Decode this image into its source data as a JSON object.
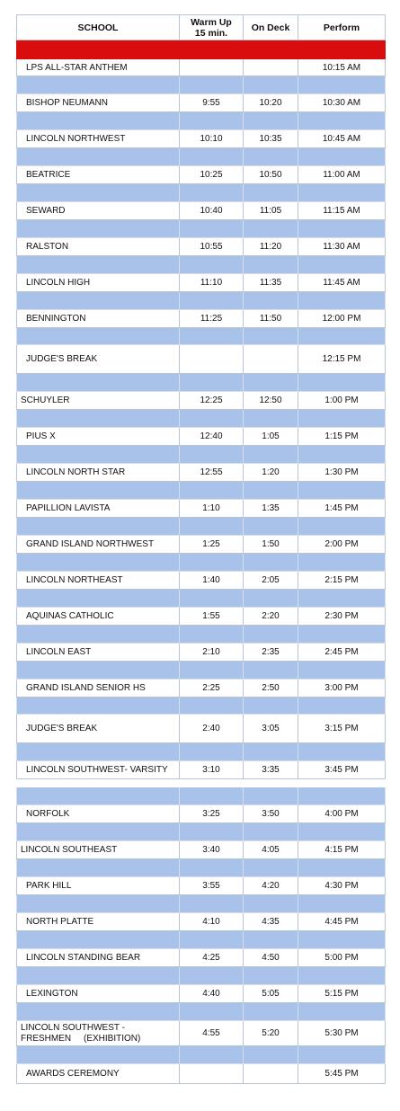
{
  "header": {
    "school": "SCHOOL",
    "warmup": "Warm Up\n15 min.",
    "ondeck": "On Deck",
    "perform": "Perform"
  },
  "rows": [
    {
      "type": "school",
      "school": "LPS ALL-STAR ANTHEM",
      "warmup": "",
      "ondeck": "",
      "perform": "10:15 AM"
    },
    {
      "type": "school",
      "school": "BISHOP NEUMANN",
      "warmup": "9:55",
      "ondeck": "10:20",
      "perform": "10:30 AM"
    },
    {
      "type": "school",
      "school": "LINCOLN NORTHWEST",
      "warmup": "10:10",
      "ondeck": "10:35",
      "perform": "10:45 AM"
    },
    {
      "type": "school",
      "school": "BEATRICE",
      "warmup": "10:25",
      "ondeck": "10:50",
      "perform": "11:00 AM"
    },
    {
      "type": "school",
      "school": "SEWARD",
      "warmup": "10:40",
      "ondeck": "11:05",
      "perform": "11:15 AM"
    },
    {
      "type": "school",
      "school": "RALSTON",
      "warmup": "10:55",
      "ondeck": "11:20",
      "perform": "11:30 AM"
    },
    {
      "type": "school",
      "school": "LINCOLN HIGH",
      "warmup": "11:10",
      "ondeck": "11:35",
      "perform": "11:45 AM"
    },
    {
      "type": "school",
      "school": "BENNINGTON",
      "warmup": "11:25",
      "ondeck": "11:50",
      "perform": "12:00 PM"
    },
    {
      "type": "break",
      "school": "JUDGE'S BREAK",
      "warmup": "",
      "ondeck": "",
      "perform": "12:15 PM"
    },
    {
      "type": "school",
      "school": "SCHUYLER",
      "warmup": "12:25",
      "ondeck": "12:50",
      "perform": "1:00 PM"
    },
    {
      "type": "school",
      "school": "PIUS X",
      "warmup": "12:40",
      "ondeck": "1:05",
      "perform": "1:15 PM"
    },
    {
      "type": "school",
      "school": "LINCOLN NORTH STAR",
      "warmup": "12:55",
      "ondeck": "1:20",
      "perform": "1:30 PM"
    },
    {
      "type": "school",
      "school": "PAPILLION LAVISTA",
      "warmup": "1:10",
      "ondeck": "1:35",
      "perform": "1:45 PM"
    },
    {
      "type": "school",
      "school": "GRAND ISLAND NORTHWEST",
      "warmup": "1:25",
      "ondeck": "1:50",
      "perform": "2:00 PM"
    },
    {
      "type": "school",
      "school": "LINCOLN NORTHEAST",
      "warmup": "1:40",
      "ondeck": "2:05",
      "perform": "2:15 PM"
    },
    {
      "type": "school",
      "school": "AQUINAS CATHOLIC",
      "warmup": "1:55",
      "ondeck": "2:20",
      "perform": "2:30 PM"
    },
    {
      "type": "school",
      "school": "LINCOLN EAST",
      "warmup": "2:10",
      "ondeck": "2:35",
      "perform": "2:45 PM"
    },
    {
      "type": "school",
      "school": "GRAND ISLAND SENIOR HS",
      "warmup": "2:25",
      "ondeck": "2:50",
      "perform": "3:00 PM"
    },
    {
      "type": "break",
      "school": "JUDGE'S BREAK",
      "warmup": "2:40",
      "ondeck": "3:05",
      "perform": "3:15 PM"
    },
    {
      "type": "school",
      "school": "LINCOLN SOUTHWEST- VARSITY",
      "warmup": "3:10",
      "ondeck": "3:35",
      "perform": "3:45 PM"
    },
    {
      "type": "school",
      "school": "NORFOLK",
      "warmup": "3:25",
      "ondeck": "3:50",
      "perform": "4:00 PM"
    },
    {
      "type": "school",
      "school": "LINCOLN SOUTHEAST",
      "warmup": "3:40",
      "ondeck": "4:05",
      "perform": "4:15 PM"
    },
    {
      "type": "school",
      "school": "PARK HILL",
      "warmup": "3:55",
      "ondeck": "4:20",
      "perform": "4:30 PM"
    },
    {
      "type": "school",
      "school": "NORTH PLATTE",
      "warmup": "4:10",
      "ondeck": "4:35",
      "perform": "4:45 PM"
    },
    {
      "type": "school",
      "school": "LINCOLN STANDING BEAR",
      "warmup": "4:25",
      "ondeck": "4:50",
      "perform": "5:00 PM"
    },
    {
      "type": "school",
      "school": "LEXINGTON",
      "warmup": "4:40",
      "ondeck": "5:05",
      "perform": "5:15 PM"
    },
    {
      "type": "school",
      "school": "LINCOLN SOUTHWEST -\nFRESHMEN     (EXHIBITION)",
      "warmup": "4:55",
      "ondeck": "5:20",
      "perform": "5:30 PM"
    },
    {
      "type": "break",
      "school": "AWARDS CEREMONY",
      "warmup": "",
      "ondeck": "",
      "perform": "5:45 PM"
    }
  ]
}
